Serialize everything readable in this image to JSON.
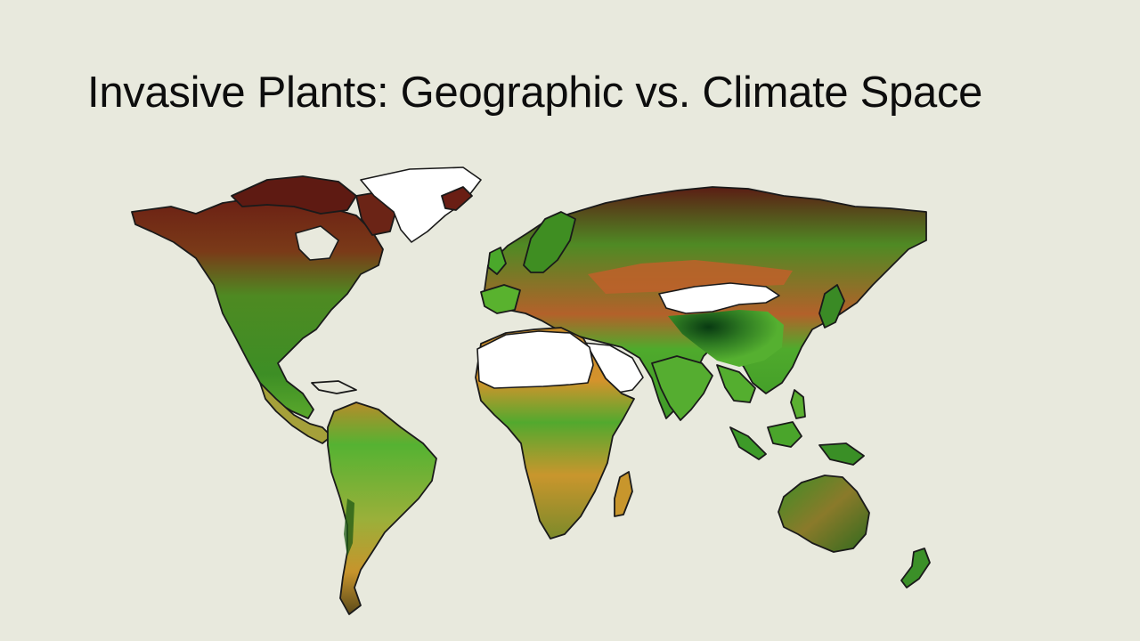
{
  "slide": {
    "title": "Invasive Plants: Geographic vs. Climate Space"
  },
  "map": {
    "type": "world choropleth",
    "colors": {
      "background": "#e8e9dd",
      "high_suitability": "#4caf2a",
      "very_high_suitability": "#0e4d1a",
      "medium_suitability": "#b9a42c",
      "low_suitability": "#c26a22",
      "very_low_suitability": "#6b1f14",
      "no_data": "#ffffff",
      "coastline": "#1a1a1a"
    }
  }
}
